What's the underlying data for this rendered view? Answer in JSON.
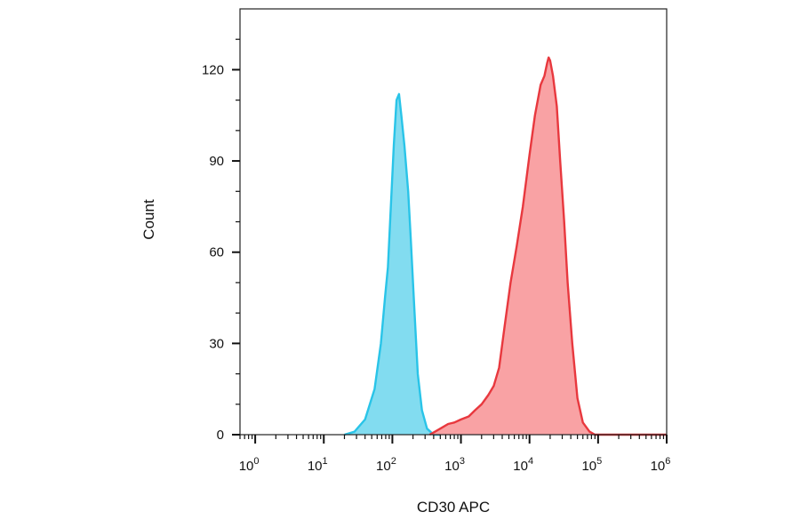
{
  "chart_data": {
    "type": "area",
    "xlabel": "CD30 APC",
    "ylabel": "Count",
    "x_scale": "log",
    "xlim": [
      0.6,
      1000000
    ],
    "ylim": [
      0,
      140
    ],
    "grid": false,
    "legend": "none",
    "y_ticks": [
      {
        "value": 0,
        "label": "0"
      },
      {
        "value": 30,
        "label": "30"
      },
      {
        "value": 60,
        "label": "60"
      },
      {
        "value": 90,
        "label": "90"
      },
      {
        "value": 120,
        "label": "120"
      }
    ],
    "x_ticks": [
      {
        "value": 1,
        "label": "10",
        "exp": "0"
      },
      {
        "value": 10,
        "label": "10",
        "exp": "1"
      },
      {
        "value": 100,
        "label": "10",
        "exp": "2"
      },
      {
        "value": 1000,
        "label": "10",
        "exp": "3"
      },
      {
        "value": 10000,
        "label": "10",
        "exp": "4"
      },
      {
        "value": 100000,
        "label": "10",
        "exp": "5"
      },
      {
        "value": 1000000,
        "label": "10",
        "exp": "6"
      }
    ],
    "series": [
      {
        "color": "#29c4e8",
        "fill": "#82dcf0",
        "points": [
          [
            20,
            0
          ],
          [
            28,
            1
          ],
          [
            40,
            5
          ],
          [
            55,
            15
          ],
          [
            68,
            30
          ],
          [
            78,
            45
          ],
          [
            86,
            55
          ],
          [
            95,
            75
          ],
          [
            105,
            95
          ],
          [
            115,
            110
          ],
          [
            125,
            112
          ],
          [
            135,
            105
          ],
          [
            150,
            95
          ],
          [
            170,
            80
          ],
          [
            185,
            65
          ],
          [
            205,
            45
          ],
          [
            235,
            20
          ],
          [
            270,
            8
          ],
          [
            320,
            2
          ],
          [
            400,
            0
          ],
          [
            500,
            0
          ]
        ]
      },
      {
        "color": "#e8383e",
        "fill": "#f9a2a4",
        "points": [
          [
            350,
            0
          ],
          [
            420,
            1
          ],
          [
            500,
            2
          ],
          [
            650,
            3.5
          ],
          [
            800,
            4
          ],
          [
            1000,
            5
          ],
          [
            1300,
            6
          ],
          [
            1600,
            8
          ],
          [
            2000,
            10
          ],
          [
            2500,
            13
          ],
          [
            3000,
            16
          ],
          [
            3600,
            22
          ],
          [
            4300,
            35
          ],
          [
            5300,
            50
          ],
          [
            6500,
            62
          ],
          [
            8000,
            75
          ],
          [
            10000,
            92
          ],
          [
            12000,
            105
          ],
          [
            14500,
            115
          ],
          [
            16500,
            118
          ],
          [
            18000,
            122
          ],
          [
            19000,
            124
          ],
          [
            20000,
            123
          ],
          [
            22000,
            118
          ],
          [
            25000,
            108
          ],
          [
            28000,
            90
          ],
          [
            32000,
            70
          ],
          [
            36000,
            50
          ],
          [
            42000,
            30
          ],
          [
            50000,
            12
          ],
          [
            60000,
            4
          ],
          [
            75000,
            1
          ],
          [
            90000,
            0
          ],
          [
            200000,
            0
          ],
          [
            1000000,
            0
          ]
        ]
      }
    ]
  }
}
